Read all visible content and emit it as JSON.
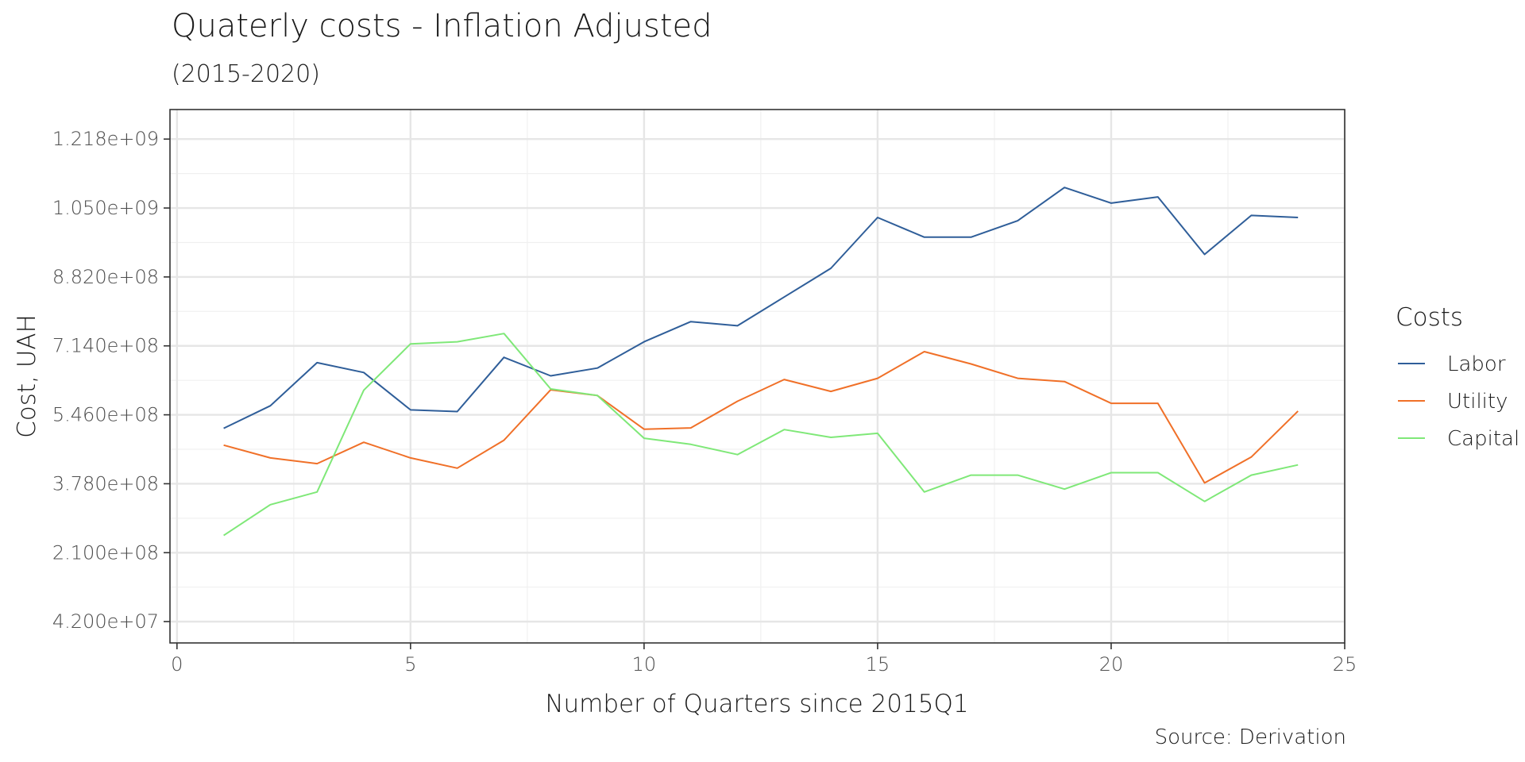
{
  "chart_data": {
    "type": "line",
    "title": "Quaterly costs - Inflation Adjusted",
    "subtitle": "(2015-2020)",
    "caption": "Source: Derivation",
    "xlabel": "Number of Quarters since 2015Q1",
    "ylabel": "Cost, UAH",
    "xlim": [
      -0.15,
      25.0
    ],
    "ylim": [
      -10000000.0,
      1290000000.0
    ],
    "x_ticks": [
      0,
      5,
      10,
      15,
      20,
      25
    ],
    "y_ticks": [
      42000000,
      210000000,
      378000000,
      546000000,
      714000000,
      882000000,
      1050000000,
      1218000000
    ],
    "y_tick_labels": [
      "4.200e+07",
      "2.100e+08",
      "3.780e+08",
      "5.460e+08",
      "7.140e+08",
      "8.820e+08",
      "1.050e+09",
      "1.218e+09"
    ],
    "grid": true,
    "legend": {
      "title": "Costs",
      "position": "right"
    },
    "x": [
      1,
      2,
      3,
      4,
      5,
      6,
      7,
      8,
      9,
      10,
      11,
      12,
      13,
      14,
      15,
      16,
      17,
      18,
      19,
      20,
      21,
      22,
      23,
      24
    ],
    "series": [
      {
        "name": "Labor",
        "color": "#2f5e99",
        "values": [
          513000000,
          568000000,
          673000000,
          649000000,
          558000000,
          554000000,
          686000000,
          641000000,
          660000000,
          724000000,
          773000000,
          763000000,
          833000000,
          903000000,
          1027000000,
          979000000,
          979000000,
          1019000000,
          1100000000,
          1062000000,
          1077000000,
          937000000,
          1032000000,
          1027000000
        ]
      },
      {
        "name": "Utility",
        "color": "#f07028",
        "values": [
          472000000,
          441000000,
          427000000,
          479000000,
          441000000,
          416000000,
          484000000,
          607000000,
          593000000,
          511000000,
          514000000,
          579000000,
          632000000,
          603000000,
          635000000,
          700000000,
          670000000,
          635000000,
          627000000,
          574000000,
          574000000,
          380000000,
          443000000,
          555000000
        ]
      },
      {
        "name": "Capital",
        "color": "#7fe878",
        "values": [
          252000000,
          327000000,
          358000000,
          606000000,
          719000000,
          724000000,
          744000000,
          609000000,
          593000000,
          489000000,
          474000000,
          449000000,
          510000000,
          491000000,
          501000000,
          358000000,
          399000000,
          399000000,
          365000000,
          405000000,
          405000000,
          335000000,
          399000000,
          424000000
        ]
      }
    ]
  }
}
